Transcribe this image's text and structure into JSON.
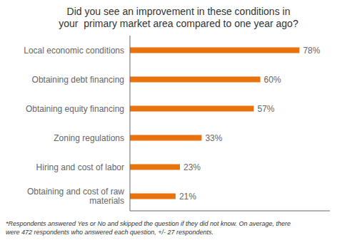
{
  "chart_data": {
    "type": "bar",
    "orientation": "horizontal",
    "title": "Did you see an improvement in these conditions in\nyour  primary market area compared to one year ago?",
    "categories": [
      "Local economic conditions",
      "Obtaining debt financing",
      "Obtaining equity financing",
      "Zoning regulations",
      "Hiring and cost of labor",
      "Obtaining and cost of raw\nmaterials"
    ],
    "values": [
      78,
      60,
      57,
      33,
      23,
      21
    ],
    "value_labels": [
      "78%",
      "60%",
      "57%",
      "33%",
      "23%",
      "21%"
    ],
    "data_labels": true,
    "color": "#E8720C",
    "xlim": [
      0,
      92
    ],
    "tick_labels": "y",
    "grid": false,
    "annotations": [
      "*Respondents answered Yes or No and skipped the question if they did not know. On average, there",
      "were 472 respondents who answered each question, +/- 27 respondents."
    ]
  }
}
